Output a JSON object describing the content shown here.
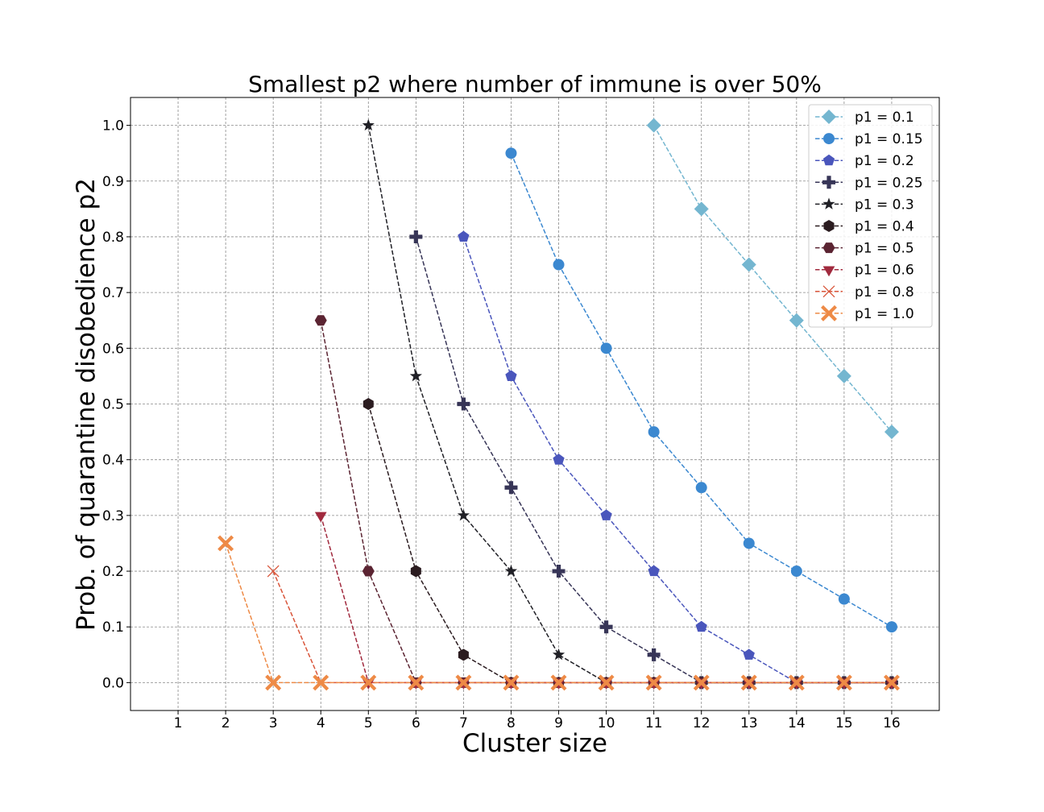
{
  "chart_data": {
    "type": "line",
    "title": "Smallest p2 where number of immune is over 50%",
    "xlabel": "Cluster size",
    "ylabel": "Prob. of quarantine disobedience p2",
    "xlim": [
      0,
      17
    ],
    "ylim": [
      -0.05,
      1.05
    ],
    "x_ticks": [
      1,
      2,
      3,
      4,
      5,
      6,
      7,
      8,
      9,
      10,
      11,
      12,
      13,
      14,
      15,
      16
    ],
    "x_tick_labels": [
      "1",
      "2",
      "3",
      "4",
      "5",
      "6",
      "7",
      "8",
      "9",
      "10",
      "11",
      "12",
      "13",
      "14",
      "15",
      "16"
    ],
    "y_ticks": [
      0.0,
      0.1,
      0.2,
      0.3,
      0.4,
      0.5,
      0.6,
      0.7,
      0.8,
      0.9,
      1.0
    ],
    "y_tick_labels": [
      "0.0",
      "0.1",
      "0.2",
      "0.3",
      "0.4",
      "0.5",
      "0.6",
      "0.7",
      "0.8",
      "0.9",
      "1.0"
    ],
    "grid": true,
    "legend_position": "top-right",
    "series": [
      {
        "name": "p1 = 0.1",
        "color": "#74b6d0",
        "marker": "diamond",
        "x": [
          11,
          12,
          13,
          14,
          15,
          16
        ],
        "y": [
          1.0,
          0.85,
          0.75,
          0.65,
          0.55,
          0.45
        ]
      },
      {
        "name": "p1 = 0.15",
        "color": "#3b88d0",
        "marker": "circle",
        "x": [
          8,
          9,
          10,
          11,
          12,
          13,
          14,
          15,
          16
        ],
        "y": [
          0.95,
          0.75,
          0.6,
          0.45,
          0.35,
          0.25,
          0.2,
          0.15,
          0.1
        ]
      },
      {
        "name": "p1 = 0.2",
        "color": "#4a56bc",
        "marker": "pentagon",
        "x": [
          7,
          8,
          9,
          10,
          11,
          12,
          13,
          14,
          15,
          16
        ],
        "y": [
          0.8,
          0.55,
          0.4,
          0.3,
          0.2,
          0.1,
          0.05,
          0.0,
          0.0,
          0.0
        ]
      },
      {
        "name": "p1 = 0.25",
        "color": "#373557",
        "marker": "plus",
        "x": [
          6,
          7,
          8,
          9,
          10,
          11,
          12,
          13,
          14,
          15,
          16
        ],
        "y": [
          0.8,
          0.5,
          0.35,
          0.2,
          0.1,
          0.05,
          0.0,
          0.0,
          0.0,
          0.0,
          0.0
        ]
      },
      {
        "name": "p1 = 0.3",
        "color": "#202026",
        "marker": "star",
        "x": [
          5,
          6,
          7,
          8,
          9,
          10,
          11,
          12,
          13,
          14,
          15,
          16
        ],
        "y": [
          1.0,
          0.55,
          0.3,
          0.2,
          0.05,
          0.0,
          0.0,
          0.0,
          0.0,
          0.0,
          0.0,
          0.0
        ]
      },
      {
        "name": "p1 = 0.4",
        "color": "#2b1c20",
        "marker": "hexagon",
        "x": [
          5,
          6,
          7,
          8,
          9,
          10,
          11,
          12,
          13,
          14,
          15,
          16
        ],
        "y": [
          0.5,
          0.2,
          0.05,
          0.0,
          0.0,
          0.0,
          0.0,
          0.0,
          0.0,
          0.0,
          0.0,
          0.0
        ]
      },
      {
        "name": "p1 = 0.5",
        "color": "#5b2432",
        "marker": "hexagon2",
        "x": [
          4,
          5,
          6,
          7,
          8,
          9,
          10,
          11,
          12,
          13,
          14,
          15,
          16
        ],
        "y": [
          0.65,
          0.2,
          0.0,
          0.0,
          0.0,
          0.0,
          0.0,
          0.0,
          0.0,
          0.0,
          0.0,
          0.0,
          0.0
        ]
      },
      {
        "name": "p1 = 0.6",
        "color": "#a12a3e",
        "marker": "triangle-down",
        "x": [
          4,
          5,
          6,
          7,
          8,
          9,
          10,
          11,
          12,
          13,
          14,
          15,
          16
        ],
        "y": [
          0.3,
          0.0,
          0.0,
          0.0,
          0.0,
          0.0,
          0.0,
          0.0,
          0.0,
          0.0,
          0.0,
          0.0,
          0.0
        ]
      },
      {
        "name": "p1 = 0.8",
        "color": "#d9553a",
        "marker": "x",
        "x": [
          3,
          4,
          5,
          6,
          7,
          8,
          9,
          10,
          11,
          12,
          13,
          14,
          15,
          16
        ],
        "y": [
          0.2,
          0.0,
          0.0,
          0.0,
          0.0,
          0.0,
          0.0,
          0.0,
          0.0,
          0.0,
          0.0,
          0.0,
          0.0,
          0.0
        ]
      },
      {
        "name": "p1 = 1.0",
        "color": "#ee8a46",
        "marker": "x-filled",
        "x": [
          2,
          3,
          4,
          5,
          6,
          7,
          8,
          9,
          10,
          11,
          12,
          13,
          14,
          15,
          16
        ],
        "y": [
          0.25,
          0.0,
          0.0,
          0.0,
          0.0,
          0.0,
          0.0,
          0.0,
          0.0,
          0.0,
          0.0,
          0.0,
          0.0,
          0.0,
          0.0
        ]
      }
    ]
  }
}
